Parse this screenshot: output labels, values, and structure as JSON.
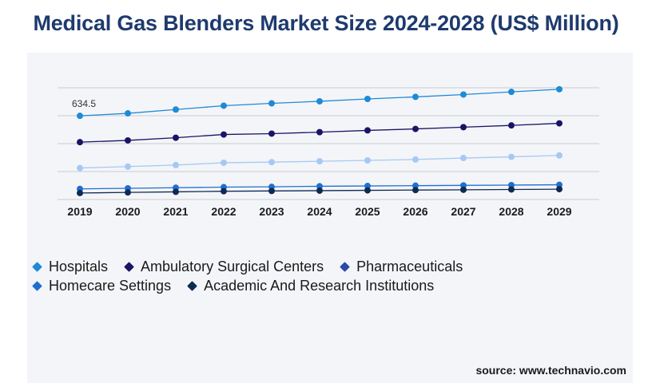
{
  "title": "Medical Gas Blenders Market Size 2024-2028 (US$ Million)",
  "source": "source: www.technavio.com",
  "annotation": "634.5",
  "chart_data": {
    "type": "line",
    "title": "Medical Gas Blenders Market Size 2024-2028 (US$ Million)",
    "x": [
      "2019",
      "2020",
      "2021",
      "2022",
      "2023",
      "2024",
      "2025",
      "2026",
      "2027",
      "2028",
      "2029"
    ],
    "grid": true,
    "legend_position": "bottom-left",
    "annotations": [
      {
        "x": "2019",
        "series": "Hospitals",
        "text": "634.5"
      }
    ],
    "series": [
      {
        "name": "Hospitals",
        "color": "#1f8ad6",
        "values": [
          634.5,
          643,
          656,
          669,
          677,
          684,
          692,
          699,
          707,
          716,
          725
        ]
      },
      {
        "name": "Ambulatory Surgical Centers",
        "color": "#1a1466",
        "values": [
          545,
          551,
          560,
          571,
          574,
          579,
          585,
          590,
          596,
          602,
          609
        ]
      },
      {
        "name": "Pharmaceuticals",
        "color": "#a6c8f5",
        "values": [
          457,
          462,
          467,
          475,
          477,
          480,
          483,
          486,
          491,
          495,
          500
        ]
      },
      {
        "name": "Homecare Settings",
        "color": "#1f6fd1",
        "values": [
          386,
          388,
          390,
          392,
          393,
          395,
          396,
          397,
          398,
          399,
          400
        ]
      },
      {
        "name": "Academic And Research Institutions",
        "color": "#0f2a52",
        "values": [
          372,
          374,
          376,
          378,
          379,
          380,
          381,
          382,
          383,
          384,
          385
        ]
      }
    ]
  },
  "legend": [
    [
      {
        "label": "Hospitals",
        "color": "#1f8ad6"
      },
      {
        "label": "Ambulatory Surgical Centers",
        "color": "#1a1466"
      },
      {
        "label": "Pharmaceuticals",
        "color": "#2a4aa8"
      }
    ],
    [
      {
        "label": "Homecare Settings",
        "color": "#1f6fd1"
      },
      {
        "label": "Academic And Research Institutions",
        "color": "#0f2a52"
      }
    ]
  ]
}
